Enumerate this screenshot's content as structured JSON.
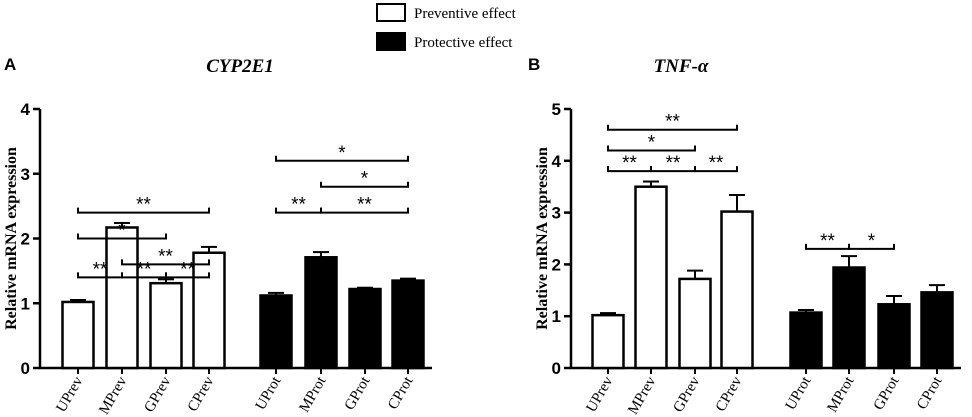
{
  "legend": [
    {
      "label": "Preventive effect",
      "fill": "#ffffff"
    },
    {
      "label": "Protective effect",
      "fill": "#000000"
    }
  ],
  "chart_data": [
    {
      "panel": "A",
      "type": "bar",
      "title": "CYP2E1",
      "ylabel": "Relative mRNA expression",
      "xlabel": "",
      "ylim": [
        0,
        4
      ],
      "yticks": [
        "0",
        "1",
        "2",
        "3",
        "4"
      ],
      "categories": [
        "UPrev",
        "MPrev",
        "GPrev",
        "CPrev",
        "UProt",
        "MProt",
        "GProt",
        "CProt"
      ],
      "values": [
        1.02,
        2.17,
        1.31,
        1.78,
        1.12,
        1.71,
        1.22,
        1.35
      ],
      "errors": [
        0.03,
        0.07,
        0.06,
        0.09,
        0.04,
        0.08,
        0.02,
        0.03
      ],
      "series_of_category": [
        "Preventive effect",
        "Preventive effect",
        "Preventive effect",
        "Preventive effect",
        "Protective effect",
        "Protective effect",
        "Protective effect",
        "Protective effect"
      ],
      "significance": [
        {
          "from": "UPrev",
          "to": "MPrev",
          "label": "**",
          "y": 1.4
        },
        {
          "from": "MPrev",
          "to": "GPrev",
          "label": "**",
          "y": 1.4
        },
        {
          "from": "GPrev",
          "to": "CPrev",
          "label": "**",
          "y": 1.4
        },
        {
          "from": "MPrev",
          "to": "CPrev",
          "label": "**",
          "y": 1.6
        },
        {
          "from": "UPrev",
          "to": "GPrev",
          "label": "*",
          "y": 2.0
        },
        {
          "from": "UPrev",
          "to": "CPrev",
          "label": "**",
          "y": 2.4
        },
        {
          "from": "UProt",
          "to": "MProt",
          "label": "**",
          "y": 2.4
        },
        {
          "from": "MProt",
          "to": "CProt",
          "label": "**",
          "y": 2.4
        },
        {
          "from": "MProt",
          "to": "CProt",
          "label": "*",
          "y": 2.8
        },
        {
          "from": "UProt",
          "to": "CProt",
          "label": "*",
          "y": 3.2
        }
      ]
    },
    {
      "panel": "B",
      "type": "bar",
      "title": "TNF-α",
      "ylabel": "Relative mRNA expression",
      "xlabel": "",
      "ylim": [
        0,
        5
      ],
      "yticks": [
        "0",
        "1",
        "2",
        "3",
        "4",
        "5"
      ],
      "categories": [
        "UPrev",
        "MPrev",
        "GPrev",
        "CPrev",
        "UProt",
        "MProt",
        "GProt",
        "CProt"
      ],
      "values": [
        1.02,
        3.5,
        1.72,
        3.02,
        1.07,
        1.94,
        1.23,
        1.46
      ],
      "errors": [
        0.04,
        0.1,
        0.16,
        0.32,
        0.05,
        0.22,
        0.16,
        0.14
      ],
      "series_of_category": [
        "Preventive effect",
        "Preventive effect",
        "Preventive effect",
        "Preventive effect",
        "Protective effect",
        "Protective effect",
        "Protective effect",
        "Protective effect"
      ],
      "significance": [
        {
          "from": "UPrev",
          "to": "MPrev",
          "label": "**",
          "y": 3.8
        },
        {
          "from": "MPrev",
          "to": "GPrev",
          "label": "**",
          "y": 3.8
        },
        {
          "from": "GPrev",
          "to": "CPrev",
          "label": "**",
          "y": 3.8
        },
        {
          "from": "UPrev",
          "to": "GPrev",
          "label": "*",
          "y": 4.2
        },
        {
          "from": "UPrev",
          "to": "CPrev",
          "label": "**",
          "y": 4.6
        },
        {
          "from": "UProt",
          "to": "MProt",
          "label": "**",
          "y": 2.3
        },
        {
          "from": "MProt",
          "to": "GProt",
          "label": "*",
          "y": 2.3
        }
      ]
    }
  ]
}
